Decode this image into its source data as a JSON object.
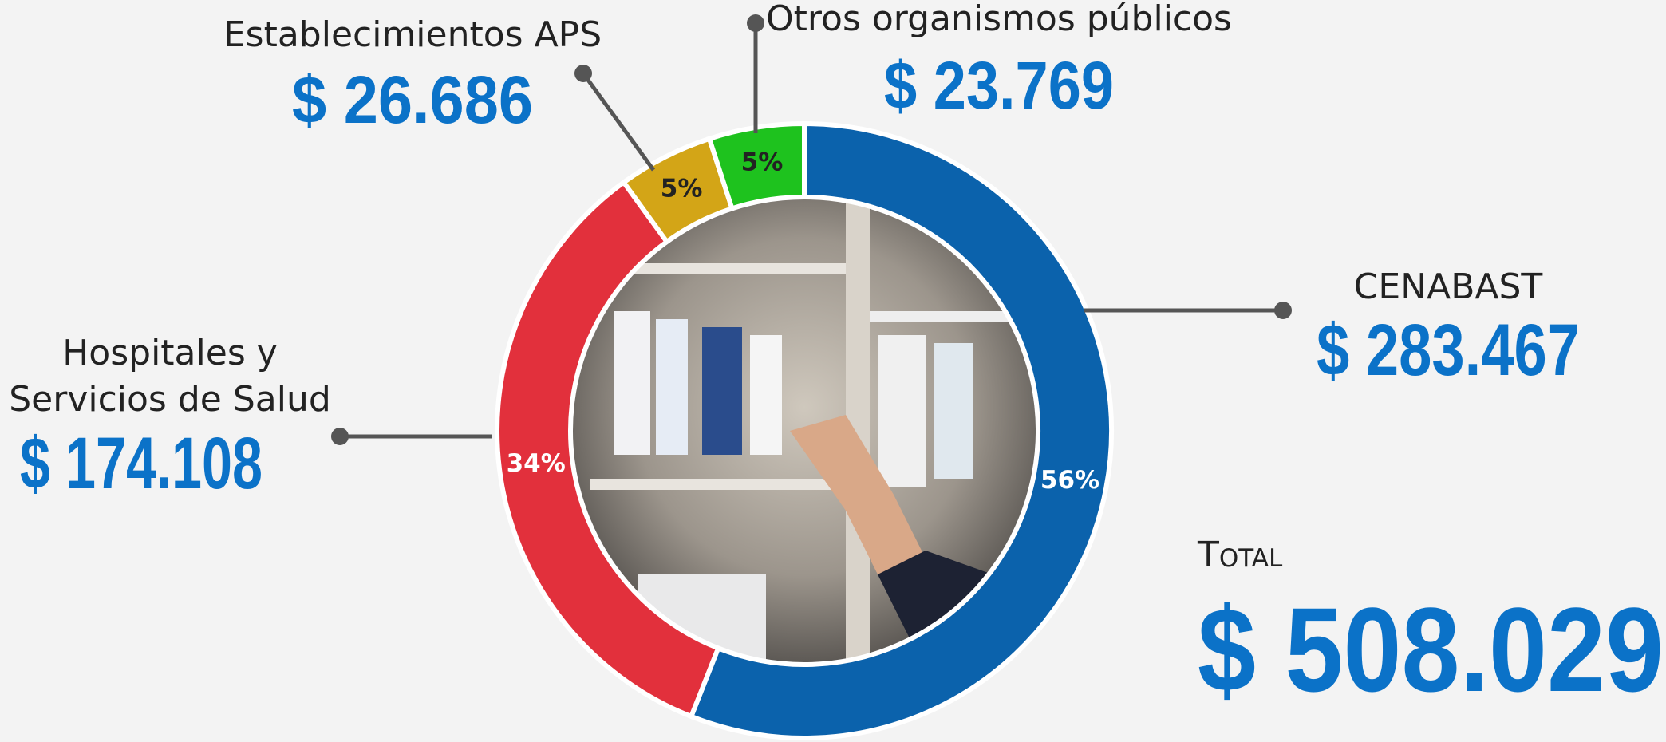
{
  "chart_data": {
    "type": "pie",
    "categories": [
      "CENABAST",
      "Hospitales y Servicios de Salud",
      "Establecimientos APS",
      "Otros organismos públicos"
    ],
    "category_lines": [
      [
        "CENABAST"
      ],
      [
        "Hospitales y",
        "Servicios de Salud"
      ],
      [
        "Establecimientos APS"
      ],
      [
        "Otros organismos públicos"
      ]
    ],
    "values": [
      56,
      34,
      5,
      5
    ],
    "value_labels": [
      "56%",
      "34%",
      "5%",
      "5%"
    ],
    "amount_labels": [
      "$ 283.467",
      "$ 174.108",
      "$ 26.686",
      "$ 23.769"
    ],
    "colors": [
      "#0b62ac",
      "#e2303c",
      "#d3a517",
      "#1ec21e"
    ],
    "total_label": "Total",
    "total": "$ 508.029"
  }
}
